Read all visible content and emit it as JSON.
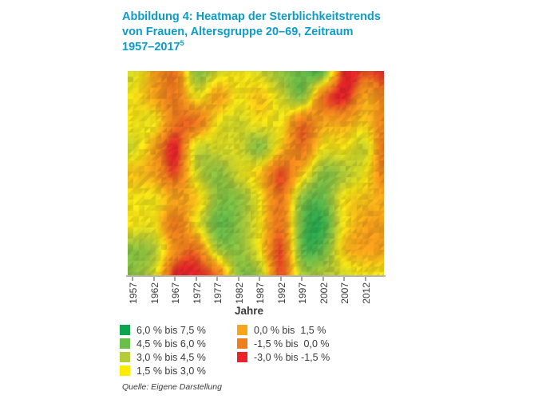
{
  "figure": {
    "title_lines": [
      "Abbildung 4: Heatmap der Sterblichkeitstrends",
      "von Frauen, Altersgruppe 20–69, Zeitraum",
      "1957–2017"
    ],
    "title_footnote_marker": "5",
    "title_color": "#0C9CC7",
    "source": "Quelle: Eigene Darstellung"
  },
  "chart_data": {
    "type": "heatmap",
    "title": "Abbildung 4: Heatmap der Sterblichkeitstrends von Frauen, Altersgruppe 20–69, Zeitraum 1957–2017",
    "xlabel": "Jahre",
    "x_tick_labels": [
      "1957",
      "1962",
      "1967",
      "1972",
      "1977",
      "1982",
      "1987",
      "1992",
      "1997",
      "2002",
      "2007",
      "2012"
    ],
    "x_range": [
      1957,
      2017
    ],
    "y_axis_note": "Altersgruppe 20–69, Achse ohne sichtbare Beschriftung (oben = jüngere Alter)",
    "grid_years": [
      1957,
      1962,
      1967,
      1972,
      1977,
      1982,
      1987,
      1992,
      1997,
      2002,
      2007,
      2012,
      2017
    ],
    "grid_values": [
      [
        3.0,
        0.75,
        -0.75,
        4.5,
        3.0,
        2.25,
        3.0,
        4.5,
        5.25,
        5.25,
        -2.25,
        -1.5,
        -2.25
      ],
      [
        2.25,
        0.75,
        -0.75,
        2.25,
        0.75,
        2.25,
        1.5,
        3.0,
        4.5,
        -0.75,
        -2.25,
        0.75,
        -0.75
      ],
      [
        2.25,
        2.25,
        -0.75,
        -0.75,
        2.25,
        3.0,
        2.25,
        2.25,
        -0.75,
        0.75,
        0.75,
        1.5,
        -0.75
      ],
      [
        3.0,
        0.75,
        -2.25,
        3.0,
        3.0,
        3.0,
        4.5,
        1.5,
        -0.75,
        2.25,
        2.25,
        3.0,
        -1.5
      ],
      [
        1.5,
        0.75,
        -1.5,
        3.0,
        4.5,
        3.0,
        1.5,
        -1.5,
        1.5,
        4.5,
        3.75,
        2.25,
        -0.75
      ],
      [
        2.25,
        2.25,
        0.75,
        1.5,
        4.5,
        4.5,
        2.25,
        -0.75,
        4.5,
        5.25,
        2.25,
        1.5,
        0.75
      ],
      [
        2.25,
        2.25,
        -0.75,
        2.25,
        5.25,
        4.5,
        2.25,
        -0.75,
        5.25,
        6.0,
        2.25,
        0.75,
        0.75
      ],
      [
        4.5,
        3.75,
        0.0,
        -0.75,
        3.75,
        4.5,
        2.25,
        -1.5,
        5.25,
        5.25,
        1.5,
        0.75,
        0.75
      ],
      [
        4.5,
        3.0,
        -2.25,
        -2.25,
        -0.75,
        4.5,
        3.75,
        -1.5,
        3.75,
        3.75,
        3.0,
        2.25,
        2.25
      ]
    ],
    "color_scale": [
      {
        "value": -2.25,
        "color": "#E8252A"
      },
      {
        "value": -0.75,
        "color": "#F07D1E"
      },
      {
        "value": 0.75,
        "color": "#F9A51B"
      },
      {
        "value": 2.25,
        "color": "#F9E816"
      },
      {
        "value": 3.75,
        "color": "#B4CC37"
      },
      {
        "value": 5.25,
        "color": "#6CBE4A"
      },
      {
        "value": 6.75,
        "color": "#0FA450"
      }
    ]
  },
  "legend": {
    "columns": [
      {
        "items": [
          {
            "color": "#0DA44F",
            "label": "6,0 % bis 7,5 %"
          },
          {
            "color": "#6CBE4A",
            "label": "4,5 % bis 6,0 %"
          },
          {
            "color": "#B4CC37",
            "label": "3,0 % bis 4,5 %"
          },
          {
            "color": "#FFEB00",
            "label": "1,5 % bis 3,0 %"
          }
        ]
      },
      {
        "items": [
          {
            "color": "#F9A51B",
            "label": "0,0 % bis  1,5 %"
          },
          {
            "color": "#F07D1E",
            "label": "-1,5 % bis  0,0 %"
          },
          {
            "color": "#EB2227",
            "label": "-3,0 % bis -1,5 %"
          }
        ]
      }
    ]
  }
}
